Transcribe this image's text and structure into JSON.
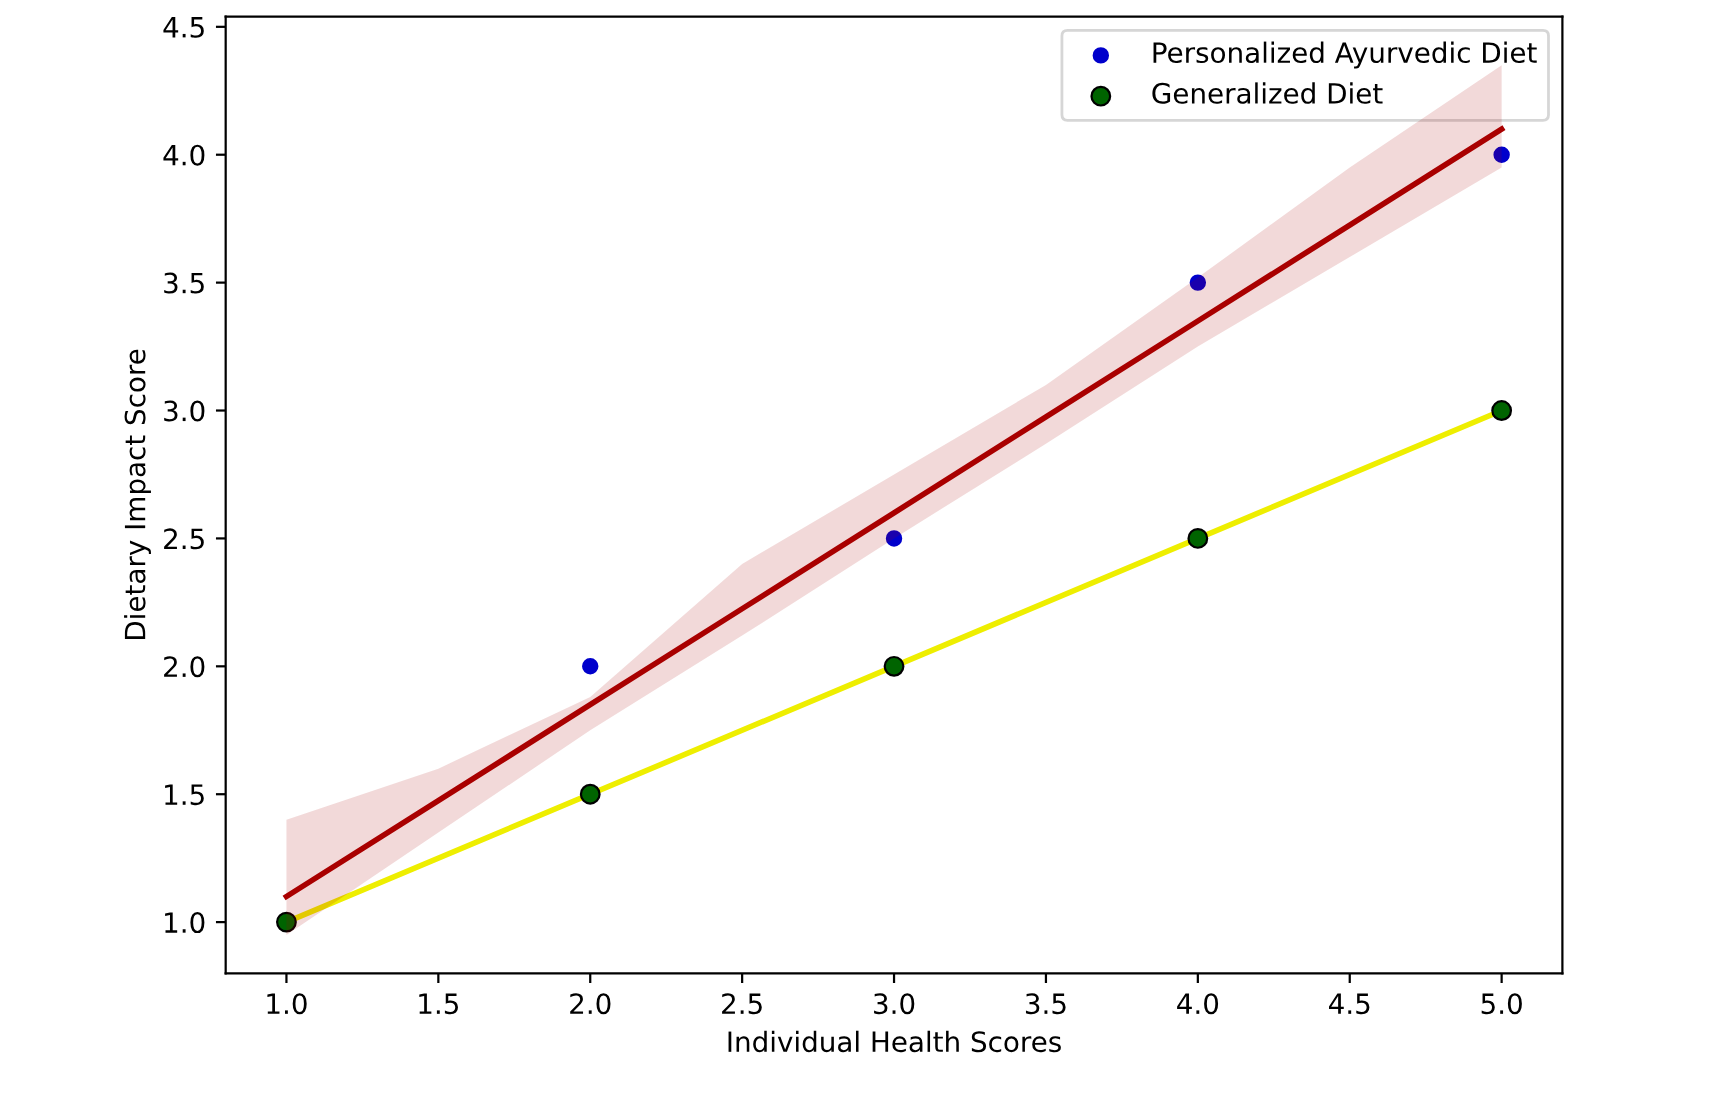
{
  "chart_data": {
    "type": "scatter",
    "xlabel": "Individual Health Scores",
    "ylabel": "Dietary Impact Score",
    "xlim": [
      0.8,
      5.2
    ],
    "xticks": [
      {
        "value": 1,
        "label": "1.0"
      },
      {
        "value": 1.5,
        "label": "1.5"
      },
      {
        "value": 2,
        "label": "2.0"
      },
      {
        "value": 2.5,
        "label": "2.5"
      },
      {
        "value": 3,
        "label": "3.0"
      },
      {
        "value": 3.5,
        "label": "3.5"
      },
      {
        "value": 4,
        "label": "4.0"
      },
      {
        "value": 4.5,
        "label": "4.5"
      },
      {
        "value": 5,
        "label": "5.0"
      }
    ],
    "ylim": [
      0.8,
      4.54
    ],
    "yticks": [
      {
        "value": 1,
        "label": "1.0"
      },
      {
        "value": 1.5,
        "label": "1.5"
      },
      {
        "value": 2,
        "label": "2.0"
      },
      {
        "value": 2.5,
        "label": "2.5"
      },
      {
        "value": 3,
        "label": "3.0"
      },
      {
        "value": 3.5,
        "label": "3.5"
      },
      {
        "value": 4,
        "label": "4.0"
      },
      {
        "value": 4.5,
        "label": "4.5"
      }
    ],
    "legend": "top right",
    "marker": "circle",
    "series": [
      {
        "type": "line",
        "marker": "none",
        "color": "#aa0000",
        "x": [
          1,
          1.5,
          2,
          2.5,
          3,
          3.5,
          4,
          4.5,
          5
        ],
        "values": [
          1.1,
          1.475,
          1.85,
          2.225,
          2.6,
          2.975,
          3.35,
          3.725,
          4.1
        ],
        "lower": [
          0.95,
          1.35,
          1.75,
          2.12,
          2.5,
          2.87,
          3.25,
          3.6,
          3.95
        ],
        "upper": [
          1.4,
          1.6,
          1.88,
          2.4,
          2.75,
          3.1,
          3.52,
          3.95,
          4.35
        ]
      },
      {
        "type": "line",
        "marker": "none",
        "color": "#eeee00",
        "x": [
          1,
          5
        ],
        "values": [
          1,
          3
        ]
      },
      {
        "name": "Personalized Ayurvedic Diet",
        "color": "#0000cc",
        "x": [
          2,
          3,
          4,
          5
        ],
        "values": [
          2,
          2.5,
          3.5,
          4
        ]
      },
      {
        "name": "Generalized Diet",
        "color": "#006400",
        "x": [
          1,
          2,
          3,
          4,
          5
        ],
        "values": [
          1,
          1.5,
          2,
          2.5,
          3
        ]
      }
    ]
  }
}
